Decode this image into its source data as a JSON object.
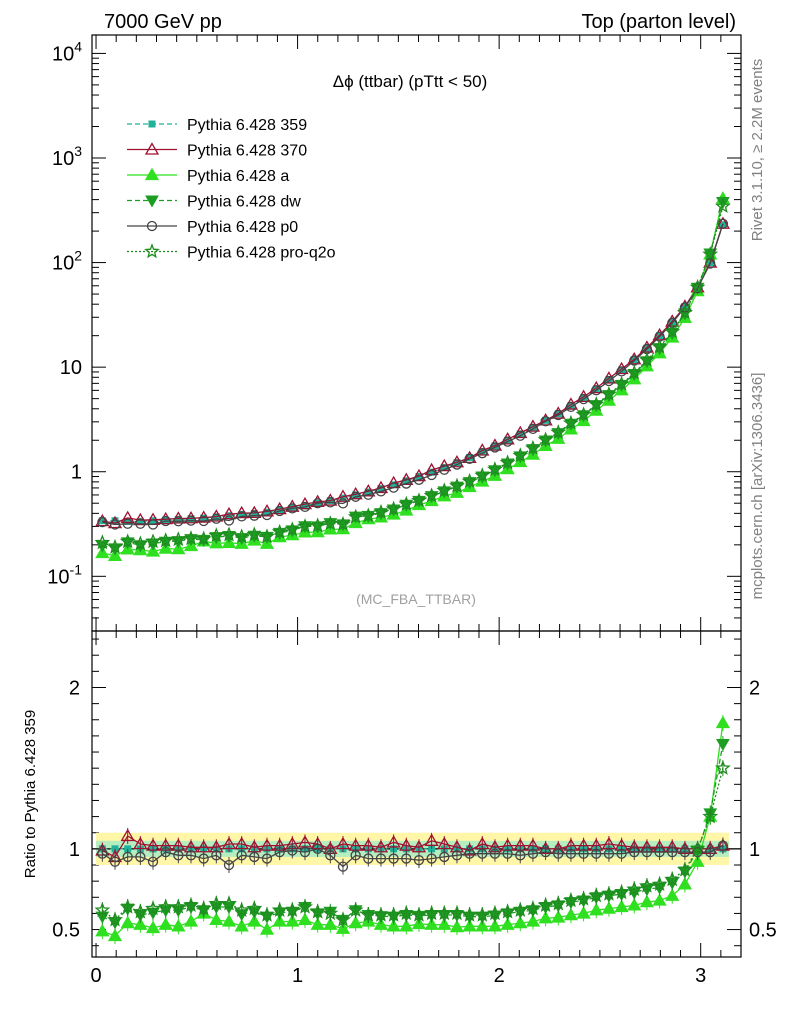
{
  "header": {
    "energy": "7000 GeV pp",
    "process": "Top (parton level)"
  },
  "side_labels": {
    "rivet": "Rivet 3.1.10, ≥ 2.2M events",
    "mcplots": "mcplots.cern.ch [arXiv:1306.3436]"
  },
  "chart_data": {
    "type": "line",
    "title": "Δϕ (ttbar) (pTtt < 50)",
    "watermark": "(MC_FBA_TTBAR)",
    "xlabel": "",
    "ylabel": "",
    "ratio_ylabel": "Ratio to Pythia 6.428 359",
    "xlim": [
      -0.02,
      3.2
    ],
    "ylim": [
      0.03,
      15000
    ],
    "ylog": true,
    "ratio_ylim": [
      0.33,
      2.35
    ],
    "x_ticks": [
      "0",
      "1",
      "2",
      "3"
    ],
    "y_ticks": [
      "10^-1",
      "1",
      "10",
      "10^2",
      "10^3",
      "10^4"
    ],
    "ratio_ticks": [
      "0.5",
      "1",
      "2"
    ],
    "legend_position": "top-left",
    "x": [
      0.0314,
      0.0942,
      0.1571,
      0.2199,
      0.2827,
      0.3456,
      0.4084,
      0.4712,
      0.5341,
      0.5969,
      0.6597,
      0.7226,
      0.7854,
      0.8482,
      0.9111,
      0.9739,
      1.0367,
      1.0996,
      1.1624,
      1.2252,
      1.2881,
      1.3509,
      1.4137,
      1.4765,
      1.5394,
      1.6022,
      1.665,
      1.7279,
      1.7907,
      1.8535,
      1.9164,
      1.9792,
      2.042,
      2.1049,
      2.1677,
      2.2305,
      2.2934,
      2.3562,
      2.419,
      2.4819,
      2.5447,
      2.6075,
      2.6704,
      2.7332,
      2.796,
      2.8588,
      2.9217,
      2.9845,
      3.0473,
      3.1102
    ],
    "reference_values": [
      0.34,
      0.34,
      0.335,
      0.335,
      0.34,
      0.345,
      0.35,
      0.355,
      0.36,
      0.37,
      0.38,
      0.39,
      0.4,
      0.41,
      0.43,
      0.45,
      0.47,
      0.5,
      0.53,
      0.56,
      0.6,
      0.64,
      0.69,
      0.75,
      0.82,
      0.9,
      0.99,
      1.1,
      1.22,
      1.37,
      1.55,
      1.76,
      2.0,
      2.3,
      2.65,
      3.1,
      3.6,
      4.3,
      5.1,
      6.2,
      7.6,
      9.4,
      11.8,
      15.2,
      20.0,
      27.0,
      38.0,
      58.0,
      100.0,
      230.0
    ],
    "series": [
      {
        "name": "Pythia 6.428 359",
        "color": "#20b29a",
        "dash": "5,3",
        "marker": "square",
        "values": [
          0.34,
          0.34,
          0.335,
          0.335,
          0.34,
          0.345,
          0.35,
          0.355,
          0.36,
          0.37,
          0.38,
          0.39,
          0.4,
          0.41,
          0.43,
          0.45,
          0.47,
          0.5,
          0.53,
          0.56,
          0.6,
          0.64,
          0.69,
          0.75,
          0.82,
          0.9,
          0.99,
          1.1,
          1.22,
          1.37,
          1.55,
          1.76,
          2.0,
          2.3,
          2.65,
          3.1,
          3.6,
          4.3,
          5.1,
          6.2,
          7.6,
          9.4,
          11.8,
          15.2,
          20.0,
          27.0,
          38.0,
          58.0,
          100.0,
          230.0
        ],
        "ratio": [
          1,
          1,
          1,
          1,
          1,
          1,
          1,
          1,
          1,
          1,
          1,
          1,
          1,
          1,
          1,
          1,
          1,
          1,
          1,
          1,
          1,
          1,
          1,
          1,
          1,
          1,
          1,
          1,
          1,
          1,
          1,
          1,
          1,
          1,
          1,
          1,
          1,
          1,
          1,
          1,
          1,
          1,
          1,
          1,
          1,
          1,
          1,
          1,
          1,
          1
        ]
      },
      {
        "name": "Pythia 6.428 370",
        "color": "#a01030",
        "dash": "",
        "marker": "triangle-open",
        "values": [
          0.337,
          0.323,
          0.362,
          0.345,
          0.347,
          0.352,
          0.357,
          0.359,
          0.364,
          0.373,
          0.393,
          0.402,
          0.404,
          0.418,
          0.439,
          0.463,
          0.49,
          0.515,
          0.53,
          0.577,
          0.61,
          0.65,
          0.7,
          0.78,
          0.836,
          0.909,
          1.039,
          1.133,
          1.232,
          1.356,
          1.597,
          1.778,
          2.04,
          2.35,
          2.7,
          3.1,
          3.6,
          4.39,
          5.2,
          6.3,
          7.8,
          9.6,
          11.9,
          15.4,
          20.2,
          27.3,
          38.0,
          58.0,
          100.0,
          235.0
        ],
        "ratio": [
          0.99,
          0.95,
          1.08,
          1.03,
          1.02,
          1.02,
          1.02,
          1.01,
          1.01,
          1.01,
          1.03,
          1.03,
          1.01,
          1.02,
          1.02,
          1.03,
          1.04,
          1.03,
          1.0,
          1.03,
          1.02,
          1.02,
          1.01,
          1.04,
          1.02,
          1.01,
          1.05,
          1.03,
          1.01,
          0.99,
          1.03,
          1.01,
          1.02,
          1.02,
          1.02,
          1.0,
          1.0,
          1.02,
          1.02,
          1.02,
          1.03,
          1.02,
          1.01,
          1.01,
          1.01,
          1.01,
          1.0,
          1.0,
          1.0,
          1.02
        ]
      },
      {
        "name": "Pythia 6.428 a",
        "color": "#2ee01f",
        "dash": "",
        "marker": "triangle",
        "values": [
          0.167,
          0.157,
          0.181,
          0.178,
          0.173,
          0.184,
          0.182,
          0.195,
          0.216,
          0.207,
          0.209,
          0.205,
          0.22,
          0.205,
          0.237,
          0.248,
          0.263,
          0.265,
          0.281,
          0.283,
          0.324,
          0.352,
          0.366,
          0.39,
          0.426,
          0.481,
          0.525,
          0.583,
          0.63,
          0.714,
          0.806,
          0.915,
          1.06,
          1.24,
          1.46,
          1.77,
          2.07,
          2.54,
          3.06,
          3.84,
          4.79,
          6.02,
          7.67,
          10.2,
          13.6,
          19.2,
          29.6,
          53.4,
          120.0,
          410.0
        ],
        "ratio": [
          0.49,
          0.46,
          0.54,
          0.53,
          0.51,
          0.53,
          0.52,
          0.55,
          0.6,
          0.56,
          0.55,
          0.52,
          0.55,
          0.5,
          0.55,
          0.55,
          0.56,
          0.53,
          0.53,
          0.505,
          0.54,
          0.55,
          0.53,
          0.52,
          0.52,
          0.535,
          0.53,
          0.53,
          0.515,
          0.52,
          0.52,
          0.52,
          0.53,
          0.54,
          0.55,
          0.57,
          0.575,
          0.59,
          0.6,
          0.62,
          0.63,
          0.64,
          0.65,
          0.67,
          0.68,
          0.71,
          0.78,
          0.92,
          1.2,
          1.78
        ]
      },
      {
        "name": "Pythia 6.428 dw",
        "color": "#1c9e22",
        "dash": "5,3",
        "marker": "triangle-down",
        "values": [
          0.197,
          0.185,
          0.211,
          0.198,
          0.206,
          0.214,
          0.217,
          0.227,
          0.223,
          0.237,
          0.243,
          0.232,
          0.244,
          0.238,
          0.26,
          0.275,
          0.301,
          0.3,
          0.323,
          0.314,
          0.372,
          0.378,
          0.402,
          0.435,
          0.484,
          0.526,
          0.584,
          0.649,
          0.72,
          0.795,
          0.9,
          1.034,
          1.2,
          1.403,
          1.643,
          1.99,
          2.34,
          2.88,
          3.47,
          4.34,
          5.4,
          6.77,
          8.61,
          11.4,
          15.2,
          21.3,
          32.6,
          57.4,
          122.0,
          380.0
        ],
        "ratio": [
          0.58,
          0.545,
          0.63,
          0.59,
          0.605,
          0.62,
          0.62,
          0.64,
          0.62,
          0.64,
          0.64,
          0.595,
          0.61,
          0.58,
          0.605,
          0.61,
          0.64,
          0.6,
          0.61,
          0.56,
          0.62,
          0.59,
          0.583,
          0.58,
          0.59,
          0.585,
          0.59,
          0.59,
          0.59,
          0.58,
          0.58,
          0.587,
          0.6,
          0.61,
          0.62,
          0.64,
          0.65,
          0.67,
          0.68,
          0.7,
          0.71,
          0.72,
          0.73,
          0.75,
          0.76,
          0.79,
          0.86,
          0.99,
          1.22,
          1.65
        ]
      },
      {
        "name": "Pythia 6.428 p0",
        "color": "#444444",
        "dash": "",
        "marker": "circle-open",
        "values": [
          0.33,
          0.313,
          0.318,
          0.318,
          0.313,
          0.338,
          0.336,
          0.341,
          0.338,
          0.355,
          0.342,
          0.374,
          0.38,
          0.386,
          0.421,
          0.446,
          0.461,
          0.5,
          0.509,
          0.498,
          0.576,
          0.602,
          0.649,
          0.705,
          0.771,
          0.837,
          0.931,
          1.045,
          1.171,
          1.329,
          1.504,
          1.707,
          1.94,
          2.208,
          2.57,
          3.038,
          3.49,
          4.171,
          4.947,
          6.014,
          7.372,
          9.118,
          11.564,
          14.896,
          19.6,
          26.46,
          37.24,
          56.84,
          98.0,
          235.0
        ],
        "ratio": [
          0.97,
          0.92,
          0.95,
          0.95,
          0.92,
          0.98,
          0.96,
          0.96,
          0.94,
          0.96,
          0.9,
          0.96,
          0.95,
          0.94,
          0.98,
          0.99,
          0.98,
          1.0,
          0.96,
          0.89,
          0.96,
          0.94,
          0.94,
          0.94,
          0.94,
          0.93,
          0.94,
          0.95,
          0.96,
          0.97,
          0.97,
          0.97,
          0.97,
          0.96,
          0.97,
          0.98,
          0.97,
          0.97,
          0.97,
          0.97,
          0.97,
          0.97,
          0.98,
          0.98,
          0.98,
          0.98,
          0.98,
          0.98,
          0.98,
          1.02
        ]
      },
      {
        "name": "Pythia 6.428 pro-q2o",
        "color": "#1e8c1e",
        "dash": "2,2",
        "marker": "star",
        "values": [
          0.21,
          0.19,
          0.215,
          0.205,
          0.215,
          0.22,
          0.225,
          0.23,
          0.228,
          0.245,
          0.25,
          0.24,
          0.25,
          0.24,
          0.265,
          0.28,
          0.3,
          0.305,
          0.32,
          0.315,
          0.37,
          0.38,
          0.41,
          0.44,
          0.49,
          0.53,
          0.59,
          0.66,
          0.73,
          0.81,
          0.92,
          1.05,
          1.22,
          1.43,
          1.68,
          2.02,
          2.38,
          2.92,
          3.52,
          4.4,
          5.5,
          6.9,
          8.8,
          11.7,
          15.6,
          21.8,
          33.2,
          58.0,
          120.0,
          345.0
        ],
        "ratio": [
          0.62,
          0.56,
          0.64,
          0.61,
          0.63,
          0.64,
          0.64,
          0.65,
          0.63,
          0.66,
          0.66,
          0.62,
          0.63,
          0.59,
          0.62,
          0.62,
          0.64,
          0.61,
          0.6,
          0.56,
          0.62,
          0.59,
          0.59,
          0.59,
          0.6,
          0.59,
          0.6,
          0.6,
          0.6,
          0.59,
          0.59,
          0.6,
          0.61,
          0.62,
          0.63,
          0.65,
          0.66,
          0.68,
          0.69,
          0.71,
          0.72,
          0.73,
          0.75,
          0.77,
          0.78,
          0.81,
          0.87,
          1.0,
          1.2,
          1.5
        ]
      }
    ]
  }
}
